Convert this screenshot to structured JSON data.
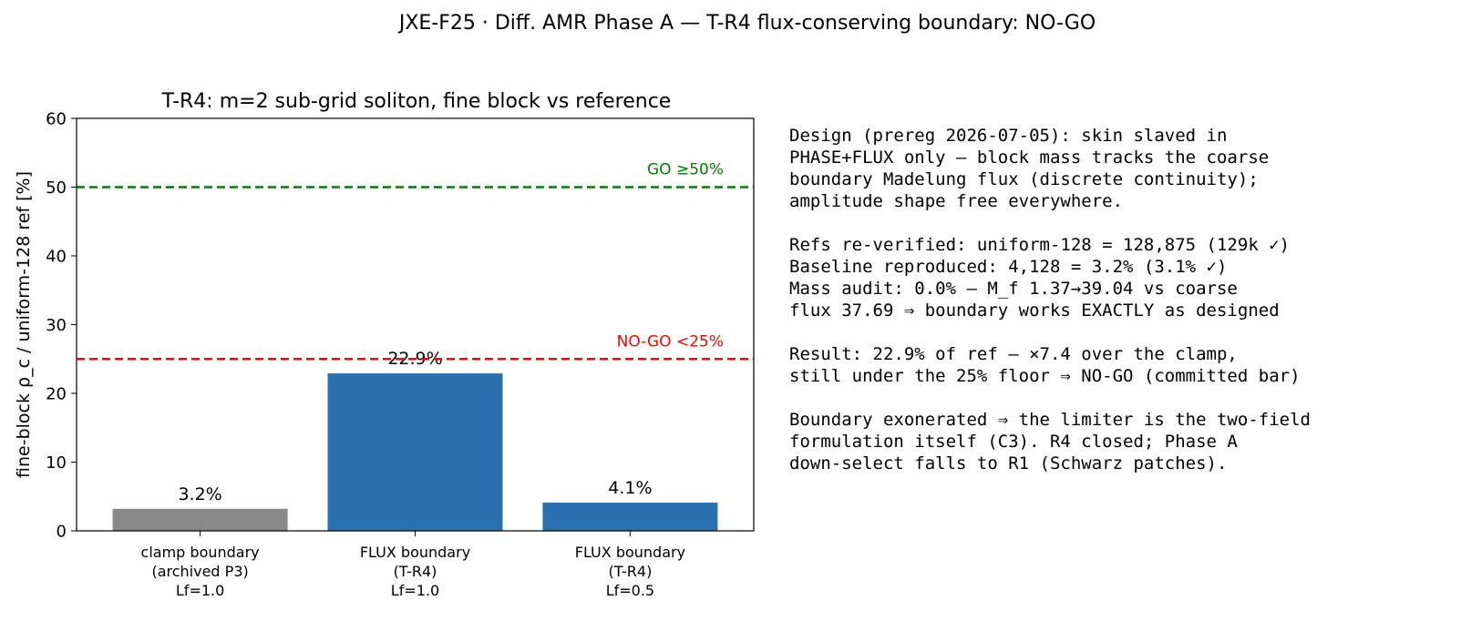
{
  "figure": {
    "suptitle": "JXE-F25 · Diff. AMR Phase A — T-R4 flux-conserving boundary: NO-GO"
  },
  "chart_data": {
    "type": "bar",
    "title": "T-R4: m=2 sub-grid soliton, fine block vs reference",
    "xlabel": "",
    "ylabel": "fine-block ρ_c / uniform-128 ref [%]",
    "ylim": [
      0,
      60
    ],
    "yticks": [
      0,
      10,
      20,
      30,
      40,
      50,
      60
    ],
    "grid": false,
    "categories": [
      [
        "clamp boundary",
        "(archived P3)",
        "Lf=1.0"
      ],
      [
        "FLUX boundary",
        "(T-R4)",
        "Lf=1.0"
      ],
      [
        "FLUX boundary",
        "(T-R4)",
        "Lf=0.5"
      ]
    ],
    "values": [
      3.2,
      22.9,
      4.1
    ],
    "value_labels": [
      "3.2%",
      "22.9%",
      "4.1%"
    ],
    "bar_colors": [
      "#888888",
      "#2b70b1",
      "#2b70b1"
    ],
    "reference_lines": [
      {
        "value": 50,
        "label": "GO ≥50%",
        "color": "#008000",
        "style": "dashed"
      },
      {
        "value": 25,
        "label": "NO-GO <25%",
        "color": "#ff0000",
        "style": "dashed"
      }
    ]
  },
  "notes": {
    "paragraphs": [
      [
        "Design (prereg 2026-07-05): skin slaved in",
        "PHASE+FLUX only — block mass tracks the coarse",
        "boundary Madelung flux (discrete continuity);",
        "amplitude shape free everywhere."
      ],
      [
        "Refs re-verified: uniform-128 = 128,875 (129k ✓)",
        "Baseline reproduced: 4,128 = 3.2% (3.1% ✓)",
        "Mass audit: 0.0% — M_f 1.37→39.04 vs coarse",
        "flux 37.69 ⇒ boundary works EXACTLY as designed"
      ],
      [
        "Result: 22.9% of ref — ×7.4 over the clamp,",
        "still under the 25% floor ⇒ NO-GO (committed bar)"
      ],
      [
        "Boundary exonerated ⇒ the limiter is the two-field",
        "formulation itself (C3). R4 closed; Phase A",
        "down-select falls to R1 (Schwarz patches)."
      ]
    ]
  }
}
